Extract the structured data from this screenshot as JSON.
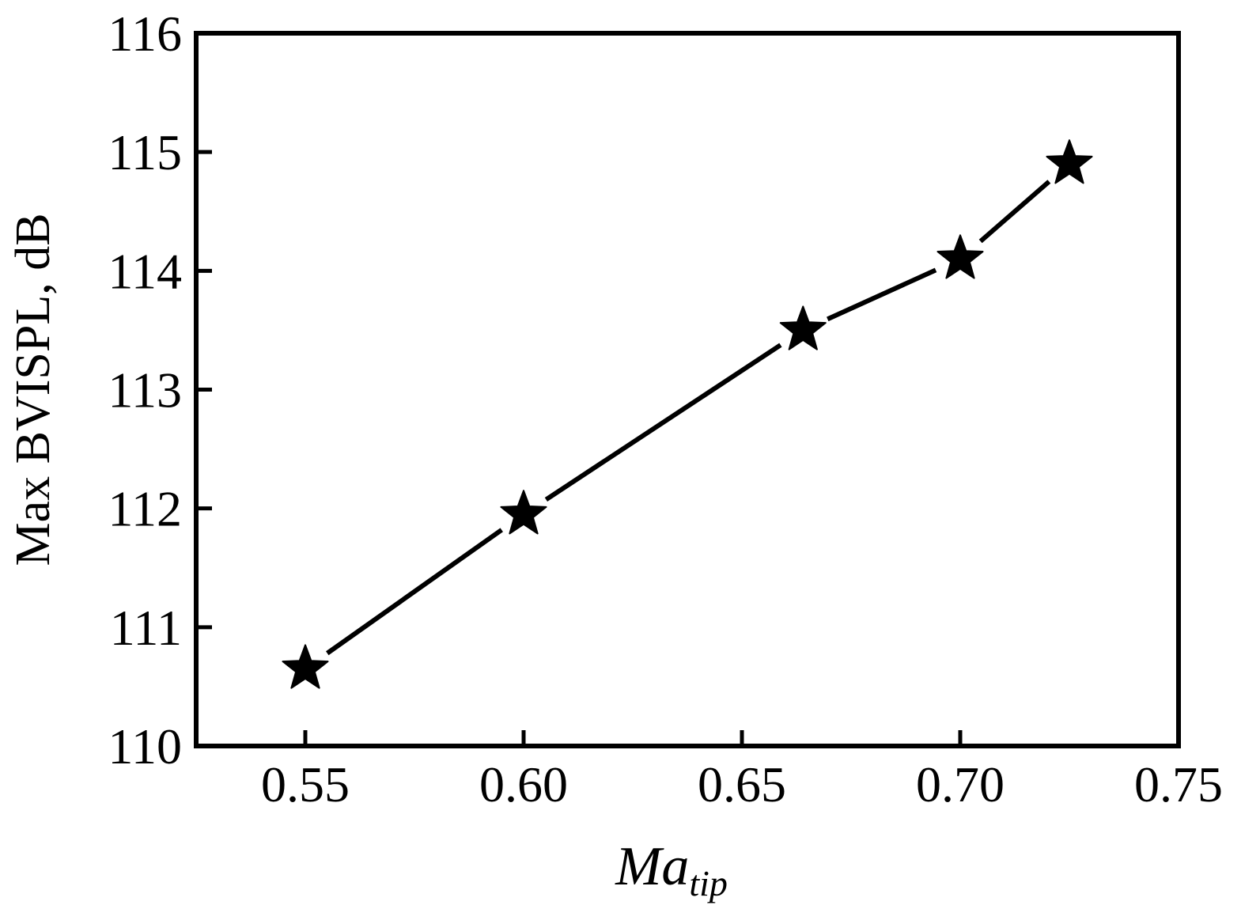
{
  "chart_data": {
    "type": "line",
    "xlabel": "Ma",
    "xlabel_subscript": "tip",
    "ylabel": "Max BVISPL, dB",
    "xlim": [
      0.525,
      0.75
    ],
    "ylim": [
      110,
      116
    ],
    "x_ticks": [
      "0.55",
      "0.60",
      "0.65",
      "0.70",
      "0.75"
    ],
    "x_tick_values": [
      0.55,
      0.6,
      0.65,
      0.7,
      0.75
    ],
    "y_ticks": [
      "110",
      "111",
      "112",
      "113",
      "114",
      "115",
      "116"
    ],
    "y_tick_values": [
      110,
      111,
      112,
      113,
      114,
      115,
      116
    ],
    "series": [
      {
        "marker": "star",
        "color": "#000000",
        "x": [
          0.55,
          0.6,
          0.664,
          0.7,
          0.725
        ],
        "y": [
          110.65,
          111.95,
          113.5,
          114.1,
          114.9
        ]
      }
    ],
    "grid": false,
    "legend": "none"
  }
}
